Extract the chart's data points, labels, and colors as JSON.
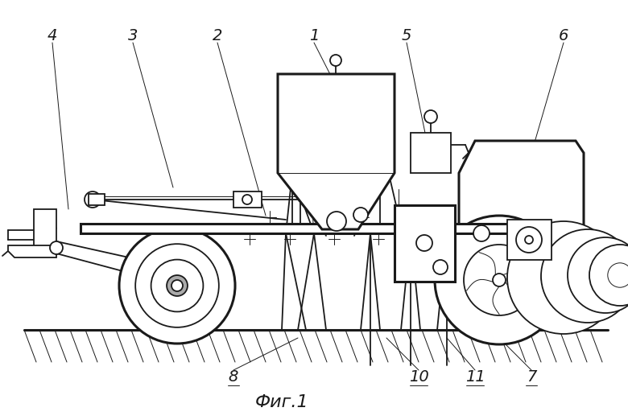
{
  "bg_color": "#ffffff",
  "line_color": "#1a1a1a",
  "fig_caption": "Фиг.1",
  "lw": 1.3,
  "lw_thick": 2.2,
  "lw_thin": 0.7
}
